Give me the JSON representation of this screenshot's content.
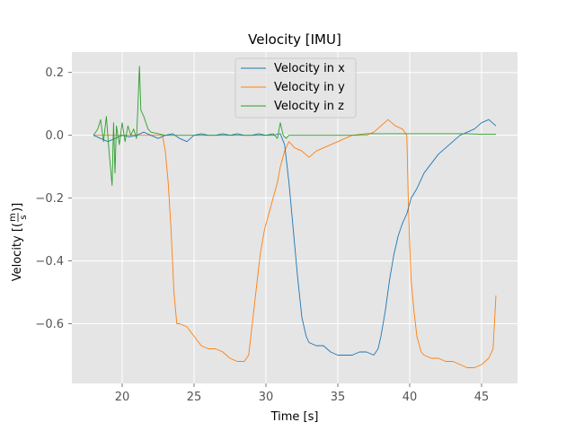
{
  "chart_data": {
    "type": "line",
    "title": "Velocity [IMU]",
    "xlabel": "Time [s]",
    "ylabel": "Velocity [(m/s)]",
    "ylabel_parts": {
      "prefix": "Velocity [(",
      "numerator": "m",
      "denominator": "s",
      "suffix": ")]"
    },
    "xlim": [
      16.5,
      47.5
    ],
    "ylim": [
      -0.79,
      0.265
    ],
    "xticks": [
      20,
      25,
      30,
      35,
      40,
      45
    ],
    "yticks": [
      -0.6,
      -0.4,
      -0.2,
      0.0,
      0.2
    ],
    "xtick_labels": [
      "20",
      "25",
      "30",
      "35",
      "40",
      "45"
    ],
    "ytick_labels": [
      "−0.6",
      "−0.4",
      "−0.2",
      "0.0",
      "0.2"
    ],
    "grid": true,
    "legend_position": "top-center",
    "series": [
      {
        "name": "Velocity in x",
        "color": "#1f77b4",
        "x": [
          18.0,
          18.5,
          19.0,
          19.5,
          20.0,
          20.5,
          21.0,
          21.5,
          22.0,
          22.5,
          23.0,
          23.5,
          24.0,
          24.5,
          25.0,
          25.5,
          26.0,
          26.5,
          27.0,
          27.5,
          28.0,
          28.5,
          29.0,
          29.5,
          30.0,
          30.5,
          31.0,
          31.3,
          31.6,
          31.9,
          32.2,
          32.5,
          32.8,
          33.0,
          33.5,
          34.0,
          34.5,
          35.0,
          35.5,
          36.0,
          36.5,
          37.0,
          37.5,
          37.8,
          38.0,
          38.3,
          38.6,
          38.9,
          39.2,
          39.5,
          39.8,
          40.1,
          40.5,
          41.0,
          41.5,
          42.0,
          42.5,
          43.0,
          43.5,
          44.0,
          44.5,
          45.0,
          45.5,
          46.0
        ],
        "y": [
          0.0,
          -0.01,
          -0.02,
          -0.01,
          0.0,
          -0.005,
          0.0,
          0.01,
          0.0,
          -0.01,
          0.0,
          0.005,
          -0.01,
          -0.02,
          0.0,
          0.005,
          0.0,
          0.0,
          0.005,
          0.0,
          0.005,
          0.0,
          0.0,
          0.005,
          0.0,
          0.0,
          0.005,
          -0.03,
          -0.15,
          -0.3,
          -0.45,
          -0.58,
          -0.64,
          -0.66,
          -0.67,
          -0.67,
          -0.69,
          -0.7,
          -0.7,
          -0.7,
          -0.69,
          -0.69,
          -0.7,
          -0.68,
          -0.64,
          -0.56,
          -0.46,
          -0.38,
          -0.32,
          -0.28,
          -0.25,
          -0.2,
          -0.17,
          -0.12,
          -0.09,
          -0.06,
          -0.04,
          -0.02,
          0.0,
          0.01,
          0.02,
          0.04,
          0.05,
          0.03
        ]
      },
      {
        "name": "Velocity in y",
        "color": "#ff7f0e",
        "x": [
          18.0,
          19.0,
          20.0,
          21.0,
          22.0,
          22.8,
          23.0,
          23.2,
          23.4,
          23.6,
          23.8,
          24.0,
          24.5,
          25.0,
          25.5,
          26.0,
          26.5,
          27.0,
          27.5,
          28.0,
          28.5,
          28.8,
          29.0,
          29.3,
          29.6,
          29.9,
          30.2,
          30.5,
          30.8,
          31.0,
          31.3,
          31.6,
          32.0,
          32.5,
          33.0,
          33.5,
          34.0,
          34.5,
          35.0,
          35.5,
          36.0,
          36.5,
          37.0,
          37.5,
          38.0,
          38.5,
          39.0,
          39.5,
          39.8,
          39.9,
          40.0,
          40.1,
          40.3,
          40.5,
          40.8,
          41.0,
          41.5,
          42.0,
          42.5,
          43.0,
          43.5,
          44.0,
          44.5,
          45.0,
          45.5,
          45.8,
          46.0
        ],
        "y": [
          0.0,
          0.0,
          0.0,
          0.0,
          0.0,
          0.0,
          -0.05,
          -0.15,
          -0.3,
          -0.5,
          -0.6,
          -0.6,
          -0.61,
          -0.64,
          -0.67,
          -0.68,
          -0.68,
          -0.69,
          -0.71,
          -0.72,
          -0.72,
          -0.7,
          -0.62,
          -0.5,
          -0.38,
          -0.3,
          -0.25,
          -0.2,
          -0.15,
          -0.1,
          -0.05,
          -0.02,
          -0.04,
          -0.05,
          -0.07,
          -0.05,
          -0.04,
          -0.03,
          -0.02,
          -0.01,
          0.0,
          0.0,
          0.0,
          0.01,
          0.03,
          0.05,
          0.03,
          0.02,
          0.0,
          -0.2,
          -0.35,
          -0.46,
          -0.56,
          -0.64,
          -0.69,
          -0.7,
          -0.71,
          -0.71,
          -0.72,
          -0.72,
          -0.73,
          -0.74,
          -0.74,
          -0.73,
          -0.71,
          -0.68,
          -0.51
        ]
      },
      {
        "name": "Velocity in z",
        "color": "#2ca02c",
        "x": [
          18.0,
          18.3,
          18.5,
          18.7,
          18.9,
          19.1,
          19.3,
          19.4,
          19.5,
          19.6,
          19.8,
          20.0,
          20.2,
          20.4,
          20.6,
          20.8,
          21.0,
          21.1,
          21.2,
          21.3,
          21.5,
          21.8,
          22.0,
          22.5,
          23.0,
          24.0,
          25.0,
          26.0,
          27.0,
          28.0,
          29.0,
          30.0,
          30.5,
          30.8,
          31.0,
          31.2,
          31.4,
          31.6,
          32.0,
          33.0,
          34.0,
          35.0,
          36.0,
          37.0,
          38.0,
          39.0,
          40.0,
          41.0,
          42.0,
          43.0,
          44.0,
          45.0,
          46.0
        ],
        "y": [
          0.0,
          0.02,
          0.05,
          -0.02,
          0.06,
          -0.06,
          -0.16,
          0.04,
          -0.12,
          0.03,
          -0.03,
          0.04,
          -0.02,
          0.03,
          0.0,
          0.02,
          -0.01,
          0.1,
          0.22,
          0.08,
          0.06,
          0.02,
          0.01,
          0.005,
          0.0,
          0.0,
          0.0,
          0.0,
          0.0,
          0.0,
          0.0,
          0.0,
          0.005,
          -0.01,
          0.04,
          0.0,
          -0.01,
          0.0,
          0.0,
          0.0,
          0.0,
          0.0,
          0.0,
          0.005,
          0.005,
          0.005,
          0.005,
          0.005,
          0.005,
          0.005,
          0.005,
          0.003,
          0.003
        ]
      }
    ]
  }
}
